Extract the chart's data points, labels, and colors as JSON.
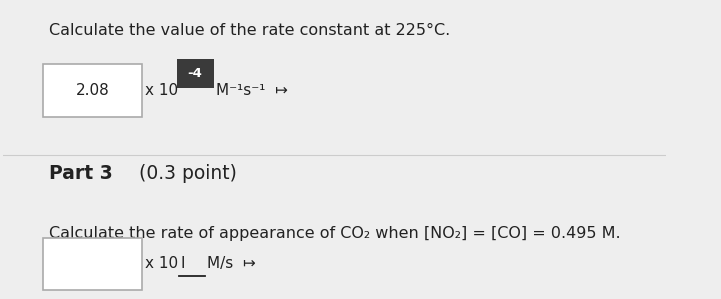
{
  "bg_color": "#eeeeee",
  "title1": "Calculate the value of the rate constant at 225°C.",
  "answer1_value": "2.08",
  "answer1_exponent": "-4",
  "answer1_units": "M⁻¹s⁻¹",
  "part_label": "Part 3",
  "part_points": "(0.3 point)",
  "title2": "Calculate the rate of appearance of CO₂ when [NO₂] = [CO] = 0.495 M.",
  "answer2_units": "M/s",
  "font_color": "#222222",
  "box_color": "#ffffff",
  "box_border": "#aaaaaa",
  "exponent_box_color": "#3a3a3a",
  "exponent_text_color": "#ffffff",
  "divider_color": "#cccccc"
}
